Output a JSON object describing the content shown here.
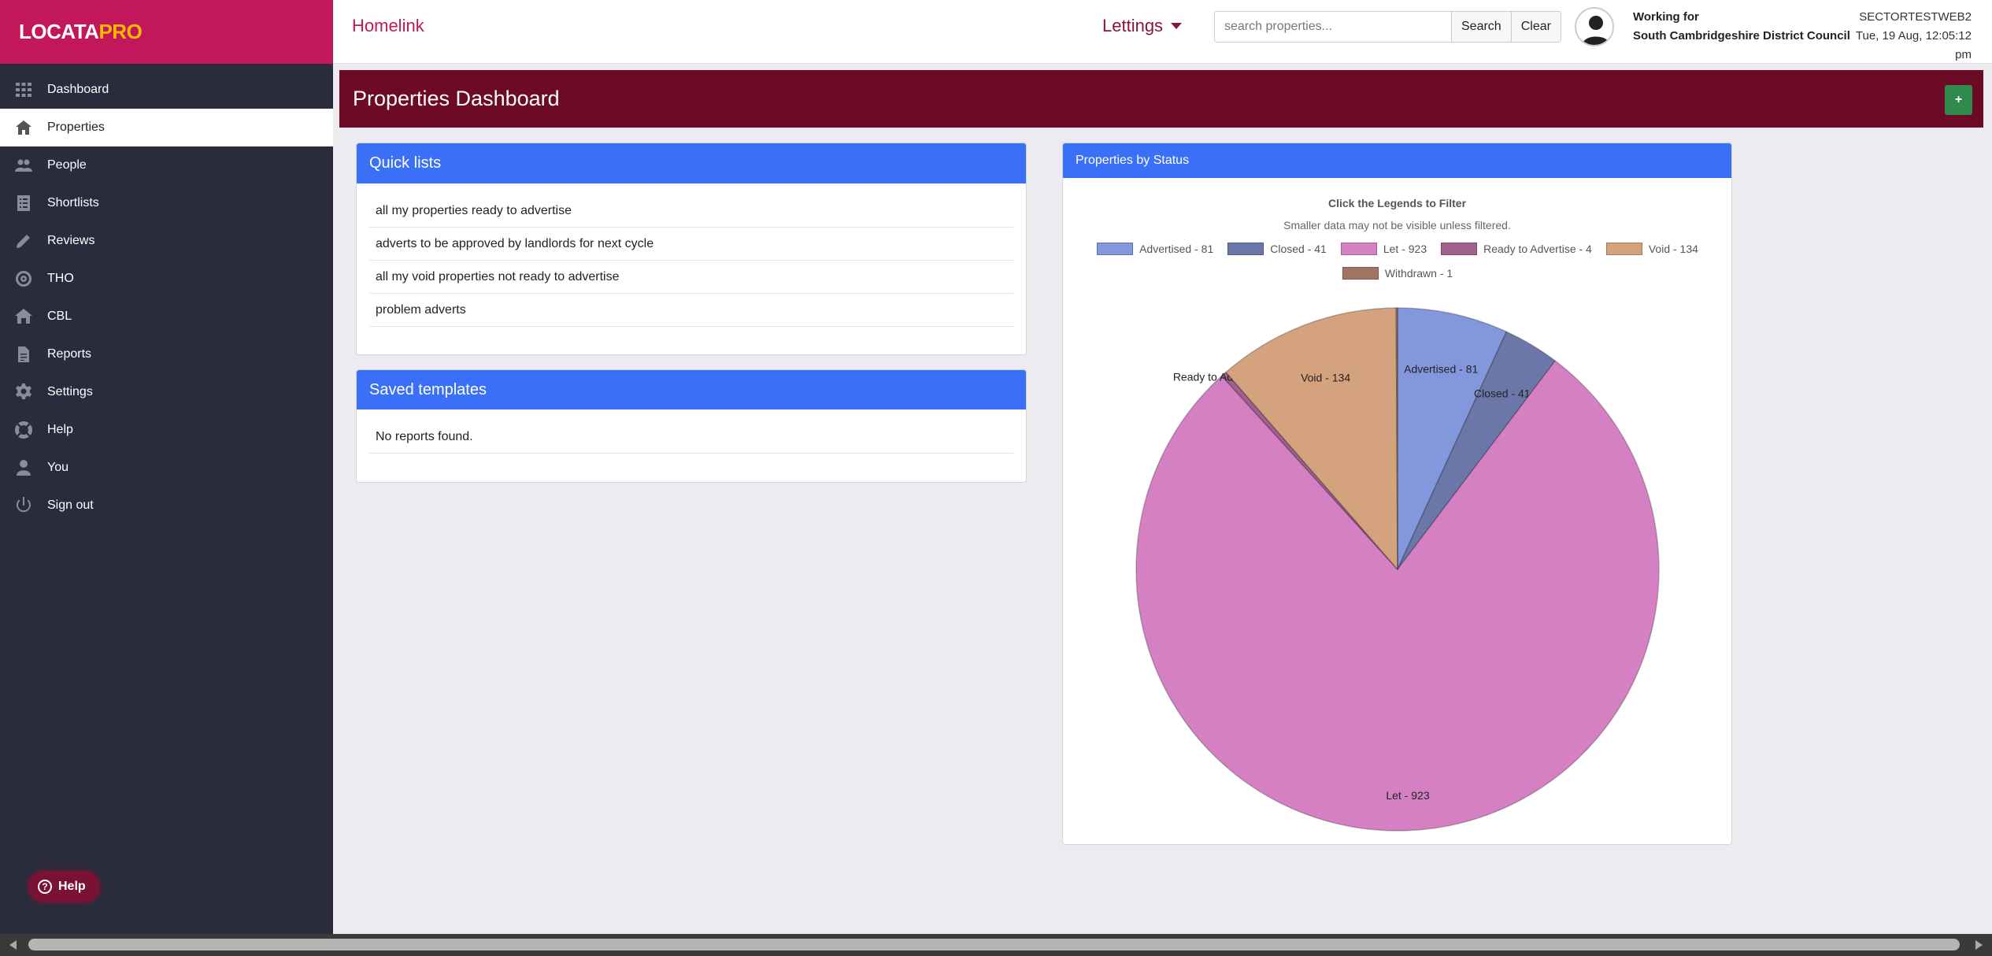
{
  "sidebar": {
    "logo": {
      "main": "LOCATA",
      "accent": "PRO"
    },
    "items": [
      {
        "label": "Dashboard",
        "icon": "grid-icon"
      },
      {
        "label": "Properties",
        "icon": "home-icon",
        "active": true
      },
      {
        "label": "People",
        "icon": "people-icon"
      },
      {
        "label": "Shortlists",
        "icon": "list-icon"
      },
      {
        "label": "Reviews",
        "icon": "pencil-icon"
      },
      {
        "label": "THO",
        "icon": "target-icon"
      },
      {
        "label": "CBL",
        "icon": "house-icon"
      },
      {
        "label": "Reports",
        "icon": "document-icon"
      },
      {
        "label": "Settings",
        "icon": "gear-icon"
      },
      {
        "label": "Help",
        "icon": "lifebuoy-icon"
      },
      {
        "label": "You",
        "icon": "user-icon"
      },
      {
        "label": "Sign out",
        "icon": "power-icon"
      }
    ],
    "help_button": "Help"
  },
  "topbar": {
    "app_title": "Homelink",
    "module": "Lettings",
    "search_placeholder": "search properties...",
    "search_value": "",
    "search_label": "Search",
    "clear_label": "Clear",
    "working_for_label": "Working for",
    "organisation": "South Cambridgeshire District Council",
    "server": "SECTORTESTWEB2",
    "datetime": "Tue, 19 Aug, 12:05:12",
    "datetime_suffix": "pm"
  },
  "page": {
    "title": "Properties Dashboard",
    "add_label": "+"
  },
  "quick_lists": {
    "title": "Quick lists",
    "items": [
      "all my properties ready to advertise",
      "adverts to be approved by landlords for next cycle",
      "all my void properties not ready to advertise",
      "problem adverts"
    ]
  },
  "saved_templates": {
    "title": "Saved templates",
    "empty_text": "No reports found."
  },
  "status_panel": {
    "title": "Properties by Status",
    "hint_bold": "Click the Legends to Filter",
    "hint": "Smaller data may not be visible unless filtered."
  },
  "chart_data": {
    "type": "pie",
    "title": "Properties by Status",
    "legend_position": "top",
    "slices": [
      {
        "name": "Advertised",
        "label": "Advertised - 81",
        "value": 81,
        "color": "#8397dd"
      },
      {
        "name": "Closed",
        "label": "Closed - 41",
        "value": 41,
        "color": "#6b77a8"
      },
      {
        "name": "Let",
        "label": "Let - 923",
        "value": 923,
        "color": "#d580c3"
      },
      {
        "name": "Ready to Advertise",
        "label": "Ready to Advertise - 4",
        "value": 4,
        "color": "#a0618e"
      },
      {
        "name": "Void",
        "label": "Void - 134",
        "value": 134,
        "color": "#d4a37e"
      },
      {
        "name": "Withdrawn",
        "label": "Withdrawn - 1",
        "value": 1,
        "color": "#a07561"
      }
    ]
  },
  "colors": {
    "brand": "#c2185b",
    "page_header": "#6d0b27",
    "panel_header": "#3a6ff7",
    "sidebar": "#2b2c3b",
    "add_button": "#2f8a4d"
  }
}
